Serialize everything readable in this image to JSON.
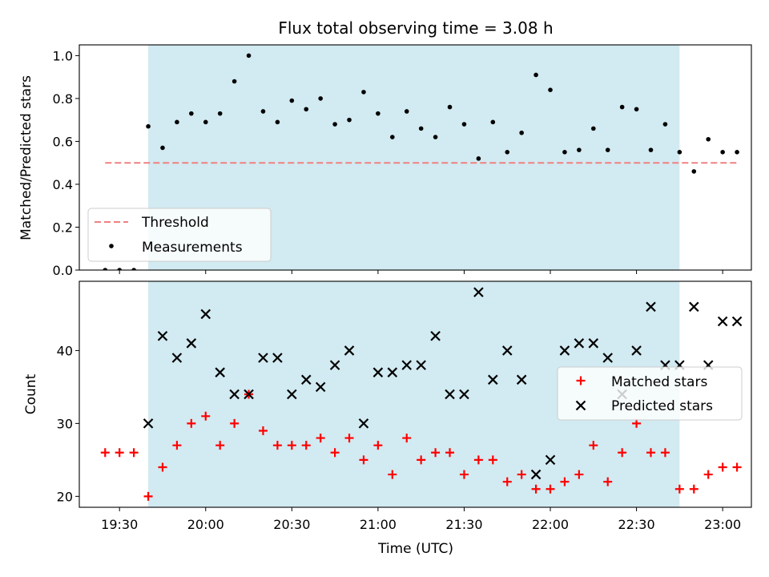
{
  "chart_data": [
    {
      "type": "scatter",
      "title": "Flux total observing time = 3.08 h",
      "ylabel": "Matched/Predicted stars",
      "xlim": [
        "19:16",
        "23:10"
      ],
      "ylim": [
        0.0,
        1.05
      ],
      "yticks": [
        0.0,
        0.2,
        0.4,
        0.6,
        0.8,
        1.0
      ],
      "shaded_interval": [
        "19:40",
        "22:45"
      ],
      "shade_color": "#add8e6",
      "legend_position": "lower-left",
      "threshold": {
        "name": "Threshold",
        "y": 0.5,
        "x_range": [
          "19:25",
          "23:05"
        ],
        "color": "#f08080"
      },
      "series": [
        {
          "name": "Measurements",
          "marker": "dot",
          "color": "#000000",
          "x": [
            "19:25",
            "19:30",
            "19:35",
            "19:40",
            "19:45",
            "19:50",
            "19:55",
            "20:00",
            "20:05",
            "20:10",
            "20:15",
            "20:20",
            "20:25",
            "20:30",
            "20:35",
            "20:40",
            "20:45",
            "20:50",
            "20:55",
            "21:00",
            "21:05",
            "21:10",
            "21:15",
            "21:20",
            "21:25",
            "21:30",
            "21:35",
            "21:40",
            "21:45",
            "21:50",
            "21:55",
            "22:00",
            "22:05",
            "22:10",
            "22:15",
            "22:20",
            "22:25",
            "22:30",
            "22:35",
            "22:40",
            "22:45",
            "22:50",
            "22:55",
            "23:00",
            "23:05"
          ],
          "y": [
            0.0,
            0.0,
            0.0,
            0.67,
            0.57,
            0.69,
            0.73,
            0.69,
            0.73,
            0.88,
            1.0,
            0.74,
            0.69,
            0.79,
            0.75,
            0.8,
            0.68,
            0.7,
            0.83,
            0.73,
            0.62,
            0.74,
            0.66,
            0.62,
            0.76,
            0.68,
            0.52,
            0.69,
            0.55,
            0.64,
            0.91,
            0.84,
            0.55,
            0.56,
            0.66,
            0.56,
            0.76,
            0.75,
            0.56,
            0.68,
            0.55,
            0.46,
            0.61,
            0.55,
            0.55
          ]
        }
      ]
    },
    {
      "type": "scatter",
      "xlabel": "Time (UTC)",
      "ylabel": "Count",
      "xlim": [
        "19:16",
        "23:10"
      ],
      "xticks": [
        "19:30",
        "20:00",
        "20:30",
        "21:00",
        "21:30",
        "22:00",
        "22:30",
        "23:00"
      ],
      "ylim": [
        18.5,
        49.5
      ],
      "yticks": [
        20,
        30,
        40
      ],
      "shaded_interval": [
        "19:40",
        "22:45"
      ],
      "legend_position": "right",
      "series": [
        {
          "name": "Matched stars",
          "marker": "plus",
          "color": "#ff0000",
          "x": [
            "19:25",
            "19:30",
            "19:35",
            "19:40",
            "19:45",
            "19:50",
            "19:55",
            "20:00",
            "20:05",
            "20:10",
            "20:15",
            "20:20",
            "20:25",
            "20:30",
            "20:35",
            "20:40",
            "20:45",
            "20:50",
            "20:55",
            "21:00",
            "21:05",
            "21:10",
            "21:15",
            "21:20",
            "21:25",
            "21:30",
            "21:35",
            "21:40",
            "21:45",
            "21:50",
            "21:55",
            "22:00",
            "22:05",
            "22:10",
            "22:15",
            "22:20",
            "22:25",
            "22:30",
            "22:35",
            "22:40",
            "22:45",
            "22:50",
            "22:55",
            "23:00",
            "23:05"
          ],
          "y": [
            26,
            26,
            26,
            20,
            24,
            27,
            30,
            31,
            27,
            30,
            34,
            29,
            27,
            27,
            27,
            28,
            26,
            28,
            25,
            27,
            23,
            28,
            25,
            26,
            26,
            23,
            25,
            25,
            22,
            23,
            21,
            21,
            22,
            23,
            27,
            22,
            26,
            30,
            26,
            26,
            21,
            21,
            23,
            24,
            24
          ]
        },
        {
          "name": "Predicted stars",
          "marker": "x",
          "color": "#000000",
          "x": [
            "19:40",
            "19:45",
            "19:50",
            "19:55",
            "20:00",
            "20:05",
            "20:10",
            "20:15",
            "20:20",
            "20:25",
            "20:30",
            "20:35",
            "20:40",
            "20:45",
            "20:50",
            "20:55",
            "21:00",
            "21:05",
            "21:10",
            "21:15",
            "21:20",
            "21:25",
            "21:30",
            "21:35",
            "21:40",
            "21:45",
            "21:50",
            "21:55",
            "22:00",
            "22:05",
            "22:10",
            "22:15",
            "22:20",
            "22:25",
            "22:30",
            "22:35",
            "22:40",
            "22:45",
            "22:50",
            "22:55",
            "23:00",
            "23:05"
          ],
          "y": [
            30,
            42,
            39,
            41,
            45,
            37,
            34,
            34,
            39,
            39,
            34,
            36,
            35,
            38,
            40,
            30,
            37,
            37,
            38,
            38,
            42,
            34,
            34,
            48,
            36,
            40,
            36,
            23,
            25,
            40,
            41,
            41,
            39,
            34,
            40,
            46,
            38,
            38,
            46,
            38,
            44,
            44
          ]
        }
      ]
    }
  ]
}
